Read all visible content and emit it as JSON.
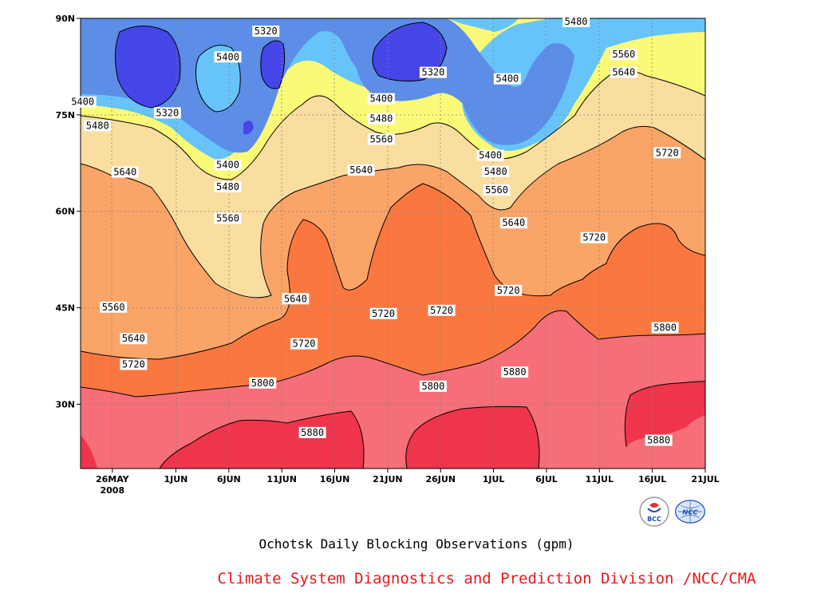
{
  "chart_data": {
    "type": "heatmap",
    "title": "Ochotsk Daily Blocking Observations (gpm)",
    "credit": "Climate System Diagnostics and Prediction Division /NCC/CMA",
    "x_ticks": [
      {
        "label": "26MAY",
        "sub": "2008",
        "day": 0
      },
      {
        "label": "1JUN",
        "sub": "",
        "day": 6
      },
      {
        "label": "6JUN",
        "sub": "",
        "day": 11
      },
      {
        "label": "11JUN",
        "sub": "",
        "day": 16
      },
      {
        "label": "16JUN",
        "sub": "",
        "day": 21
      },
      {
        "label": "21JUN",
        "sub": "",
        "day": 26
      },
      {
        "label": "26JUN",
        "sub": "",
        "day": 31
      },
      {
        "label": "1JUL",
        "sub": "",
        "day": 36
      },
      {
        "label": "6JUL",
        "sub": "",
        "day": 41
      },
      {
        "label": "11JUL",
        "sub": "",
        "day": 46
      },
      {
        "label": "16JUL",
        "sub": "",
        "day": 51
      },
      {
        "label": "21JUL",
        "sub": "",
        "day": 56
      }
    ],
    "y_ticks": [
      {
        "label": "30N",
        "lat": 30
      },
      {
        "label": "45N",
        "lat": 45
      },
      {
        "label": "60N",
        "lat": 60
      },
      {
        "label": "75N",
        "lat": 75
      },
      {
        "label": "90N",
        "lat": 90
      }
    ],
    "xlim_days": [
      -3,
      56
    ],
    "ylim_lat": [
      20,
      90
    ],
    "contour_levels": [
      5320,
      5400,
      5480,
      5560,
      5640,
      5720,
      5800,
      5880
    ],
    "fill_colors": [
      {
        "max": 5320,
        "color": "#4646e8"
      },
      {
        "max": 5400,
        "color": "#5c8ee8"
      },
      {
        "max": 5480,
        "color": "#66c4fa"
      },
      {
        "max": 5560,
        "color": "#fafa78"
      },
      {
        "max": 5640,
        "color": "#fadea0"
      },
      {
        "max": 5720,
        "color": "#faa468"
      },
      {
        "max": 5800,
        "color": "#fa7840"
      },
      {
        "max": 5880,
        "color": "#f56e78"
      },
      {
        "max": 99999,
        "color": "#f0344c"
      }
    ],
    "grid": true,
    "contour_labels": [
      {
        "text": "5320",
        "day": 14.5,
        "lat": 88
      },
      {
        "text": "5400",
        "day": 10.9,
        "lat": 84
      },
      {
        "text": "5400",
        "day": -2.8,
        "lat": 77
      },
      {
        "text": "5320",
        "day": 5.2,
        "lat": 75.3
      },
      {
        "text": "5480",
        "day": -1.4,
        "lat": 73.3
      },
      {
        "text": "5640",
        "day": 1.2,
        "lat": 66.1
      },
      {
        "text": "5400",
        "day": 10.9,
        "lat": 67.2
      },
      {
        "text": "5480",
        "day": 10.9,
        "lat": 63.8
      },
      {
        "text": "5560",
        "day": 10.9,
        "lat": 58.9
      },
      {
        "text": "5560",
        "day": 0.1,
        "lat": 45.1
      },
      {
        "text": "5640",
        "day": 17.3,
        "lat": 46.4
      },
      {
        "text": "5640",
        "day": 2.0,
        "lat": 40.2
      },
      {
        "text": "5720",
        "day": 2.0,
        "lat": 36.2
      },
      {
        "text": "5720",
        "day": 18.1,
        "lat": 39.4
      },
      {
        "text": "5800",
        "day": 14.2,
        "lat": 33.3
      },
      {
        "text": "5880",
        "day": 18.9,
        "lat": 25.6
      },
      {
        "text": "5400",
        "day": 25.4,
        "lat": 77.5
      },
      {
        "text": "5480",
        "day": 25.4,
        "lat": 74.4
      },
      {
        "text": "5560",
        "day": 25.4,
        "lat": 71.2
      },
      {
        "text": "5640",
        "day": 23.5,
        "lat": 66.4
      },
      {
        "text": "5320",
        "day": 30.3,
        "lat": 81.6
      },
      {
        "text": "5720",
        "day": 25.6,
        "lat": 44.1
      },
      {
        "text": "5720",
        "day": 31.1,
        "lat": 44.6
      },
      {
        "text": "5800",
        "day": 30.3,
        "lat": 32.8
      },
      {
        "text": "5400",
        "day": 37.3,
        "lat": 80.6
      },
      {
        "text": "5400",
        "day": 35.7,
        "lat": 68.7
      },
      {
        "text": "5480",
        "day": 36.2,
        "lat": 66.2
      },
      {
        "text": "5560",
        "day": 36.3,
        "lat": 63.3
      },
      {
        "text": "5640",
        "day": 37.9,
        "lat": 58.2
      },
      {
        "text": "5720",
        "day": 37.4,
        "lat": 47.7
      },
      {
        "text": "5880",
        "day": 38.0,
        "lat": 35.0
      },
      {
        "text": "5480",
        "day": 43.8,
        "lat": 89.5
      },
      {
        "text": "5560",
        "day": 48.3,
        "lat": 84.4
      },
      {
        "text": "5640",
        "day": 48.3,
        "lat": 81.6
      },
      {
        "text": "5720",
        "day": 52.4,
        "lat": 69.1
      },
      {
        "text": "5720",
        "day": 45.5,
        "lat": 55.9
      },
      {
        "text": "5800",
        "day": 52.2,
        "lat": 41.9
      },
      {
        "text": "5880",
        "day": 51.6,
        "lat": 24.4
      }
    ]
  },
  "logos": {
    "bcc_text": "BCC",
    "ncc_text": "NCC"
  }
}
